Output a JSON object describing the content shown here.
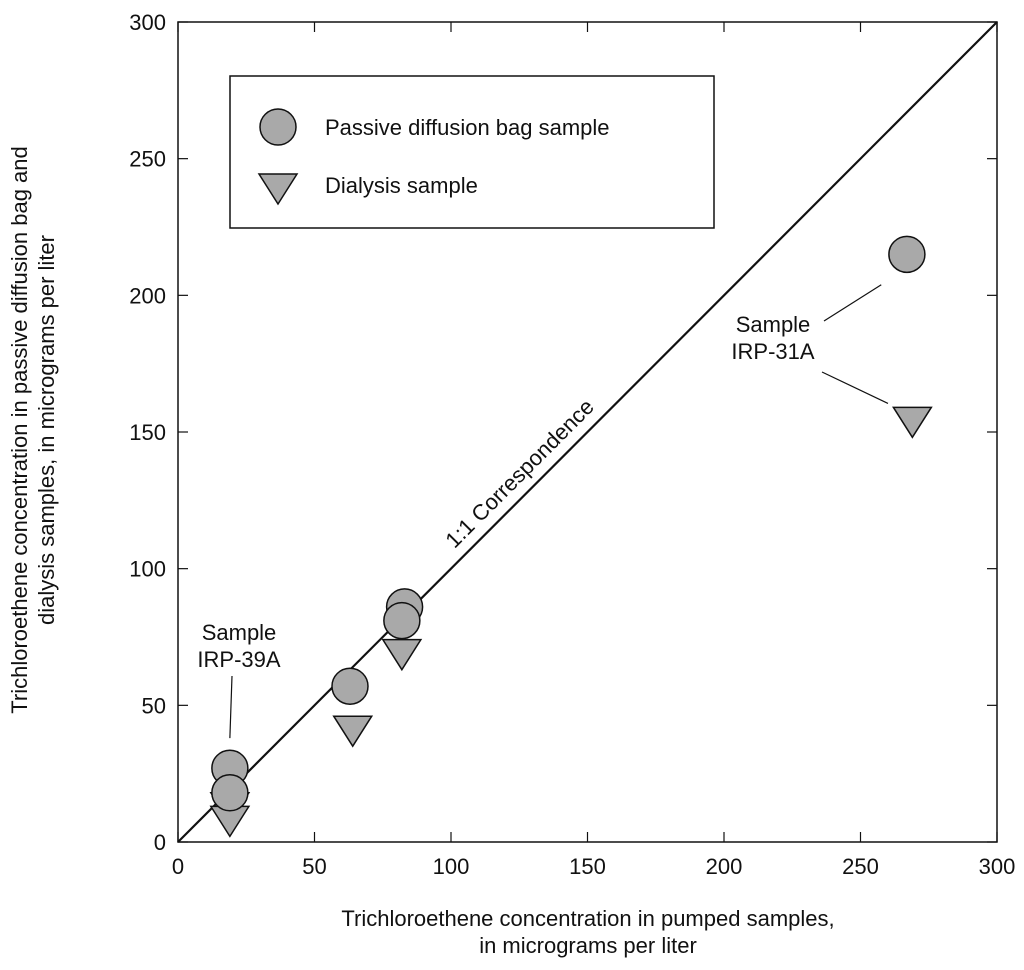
{
  "chart_data": {
    "type": "scatter",
    "xlabel_lines": [
      "Trichloroethene concentration in pumped samples,",
      "in micrograms per liter"
    ],
    "ylabel_lines": [
      "Trichloroethene concentration in passive diffusion bag and",
      "dialysis samples, in micrograms per liter"
    ],
    "xlim": [
      0,
      300
    ],
    "ylim": [
      0,
      300
    ],
    "xticks": [
      0,
      50,
      100,
      150,
      200,
      250,
      300
    ],
    "yticks": [
      0,
      50,
      100,
      150,
      200,
      250,
      300
    ],
    "grid": false,
    "legend_position": "top-left",
    "colors": {
      "marker_fill": "#a9a9a9",
      "stroke": "#111111"
    },
    "series": [
      {
        "name": "Passive diffusion bag sample",
        "marker": "circle",
        "points": [
          {
            "x": 19,
            "y": 27
          },
          {
            "x": 19,
            "y": 18
          },
          {
            "x": 63,
            "y": 57
          },
          {
            "x": 83,
            "y": 86
          },
          {
            "x": 82,
            "y": 81
          },
          {
            "x": 267,
            "y": 215
          }
        ]
      },
      {
        "name": "Dialysis sample",
        "marker": "triangle-down",
        "points": [
          {
            "x": 19,
            "y": 14
          },
          {
            "x": 19,
            "y": 9
          },
          {
            "x": 64,
            "y": 42
          },
          {
            "x": 82,
            "y": 70
          },
          {
            "x": 269,
            "y": 155
          }
        ]
      }
    ],
    "reference_line": {
      "label": "1:1 Correspondence",
      "from": [
        0,
        0
      ],
      "to": [
        300,
        300
      ]
    },
    "annotations": [
      {
        "lines": [
          "Sample",
          "IRP-39A"
        ],
        "points_to": [
          19,
          38
        ]
      },
      {
        "lines": [
          "Sample",
          "IRP-31A"
        ],
        "points_to": [
          [
            262,
            209
          ],
          [
            263,
            159
          ]
        ]
      }
    ]
  }
}
